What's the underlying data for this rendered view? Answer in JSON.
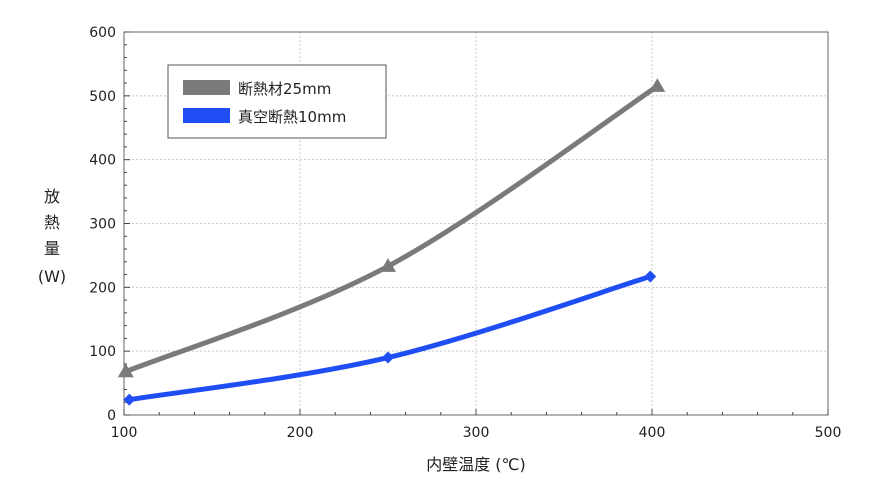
{
  "chart_data": {
    "type": "line",
    "xlabel": "内壁温度 (℃)",
    "ylabel_chars": [
      "放",
      "熱",
      "量",
      "(W)"
    ],
    "xlim": [
      100,
      500
    ],
    "ylim": [
      0,
      600
    ],
    "x_ticks": [
      100,
      200,
      300,
      400,
      500
    ],
    "y_ticks": [
      0,
      100,
      200,
      300,
      400,
      500,
      600
    ],
    "x_tick_labels": [
      "100",
      "200",
      "300",
      "400",
      "500"
    ],
    "y_tick_labels": [
      "0",
      "100",
      "200",
      "300",
      "400",
      "500",
      "600"
    ],
    "grid": true,
    "legend_position": "top-left",
    "series": [
      {
        "name": "断熱材25mm",
        "color": "#7a7a7a",
        "marker": "triangle",
        "points": [
          [
            101,
            68
          ],
          [
            250,
            233
          ],
          [
            403,
            515
          ]
        ]
      },
      {
        "name": "真空断熱10mm",
        "color": "#1f4ef5",
        "marker": "diamond",
        "points": [
          [
            103,
            24
          ],
          [
            250,
            90
          ],
          [
            399,
            217
          ]
        ]
      }
    ]
  }
}
